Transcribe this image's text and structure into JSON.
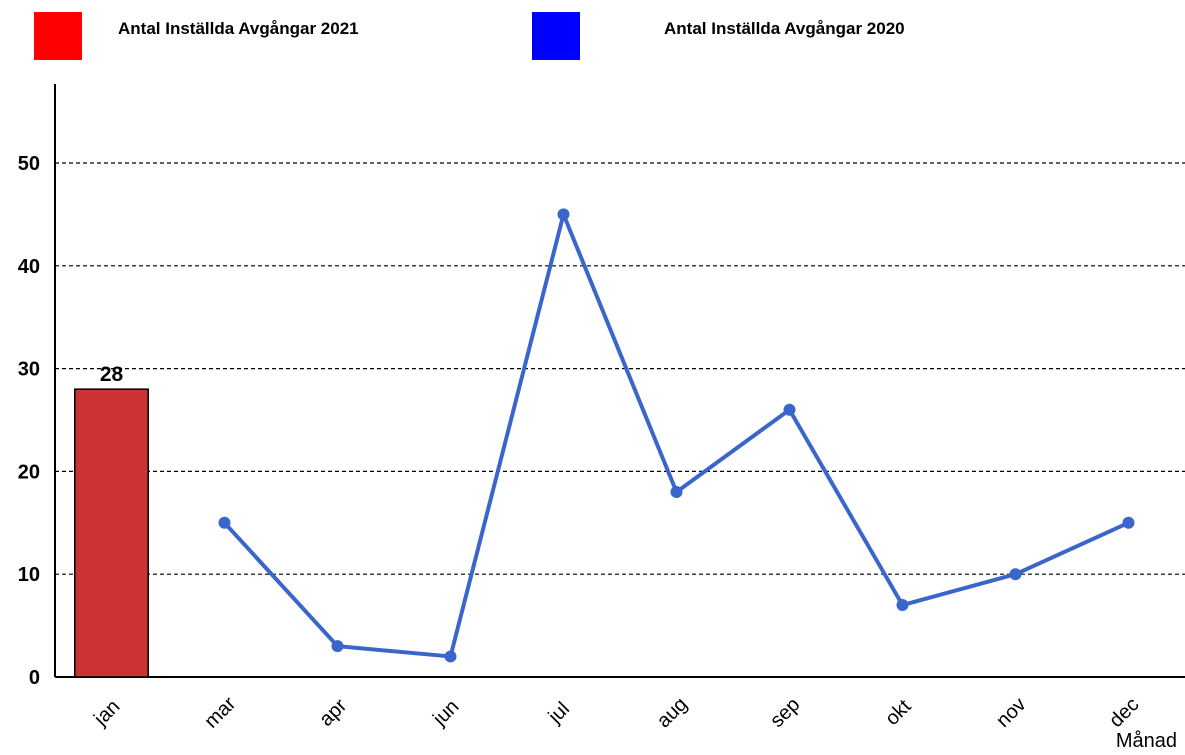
{
  "legend": [
    {
      "label": "Antal Inställda Avgångar 2021",
      "color": "#ff0000"
    },
    {
      "label": "Antal Inställda Avgångar 2020",
      "color": "#0000ff"
    }
  ],
  "chart_data": {
    "type": "bar",
    "categories": [
      "jan",
      "mar",
      "apr",
      "jun",
      "jul",
      "aug",
      "sep",
      "okt",
      "nov",
      "dec"
    ],
    "series": [
      {
        "name": "Antal Inställda Avgångar 2021",
        "type": "bar",
        "color": "#cc3333",
        "values": [
          28,
          null,
          null,
          null,
          null,
          null,
          null,
          null,
          null,
          null
        ]
      },
      {
        "name": "Antal Inställda Avgångar 2020",
        "type": "line",
        "color": "#3a66cc",
        "values": [
          null,
          15,
          3,
          2,
          45,
          18,
          26,
          7,
          10,
          15
        ]
      }
    ],
    "data_labels": [
      {
        "category": "jan",
        "text": "28"
      }
    ],
    "xlabel": "Månad",
    "ylabel": "",
    "ylim": [
      0,
      50
    ],
    "yticks": [
      "0",
      "10",
      "20",
      "30",
      "40",
      "50"
    ],
    "grid": true
  }
}
